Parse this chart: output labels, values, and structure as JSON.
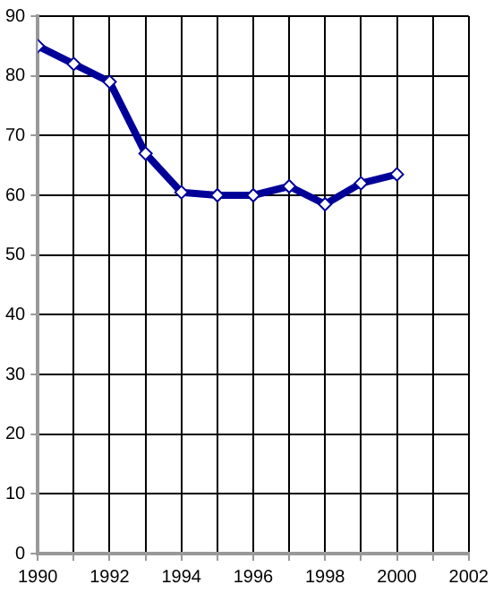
{
  "chart_data": {
    "type": "line",
    "x": [
      1990,
      1991,
      1992,
      1993,
      1994,
      1995,
      1996,
      1997,
      1998,
      1999,
      2000
    ],
    "series": [
      {
        "color": "#000099",
        "values": [
          85,
          82,
          79,
          67,
          60.5,
          60,
          60,
          61.5,
          58.5,
          62,
          63.5
        ]
      }
    ],
    "xlim": [
      1990,
      2002
    ],
    "xticks": [
      1990,
      {
        "value": 1991,
        "label": null
      },
      1992,
      {
        "value": 1993,
        "label": null
      },
      1994,
      {
        "value": 1995,
        "label": null
      },
      1996,
      {
        "value": 1997,
        "label": null
      },
      1998,
      {
        "value": 1999,
        "label": null
      },
      2000,
      {
        "value": 2001,
        "label": null
      },
      2002
    ],
    "ylim": [
      0,
      90
    ],
    "yticks": [
      0,
      10,
      20,
      30,
      40,
      50,
      60,
      70,
      80,
      90
    ],
    "grid": true,
    "legend": false,
    "marker": "diamond",
    "line_style": "solid"
  }
}
